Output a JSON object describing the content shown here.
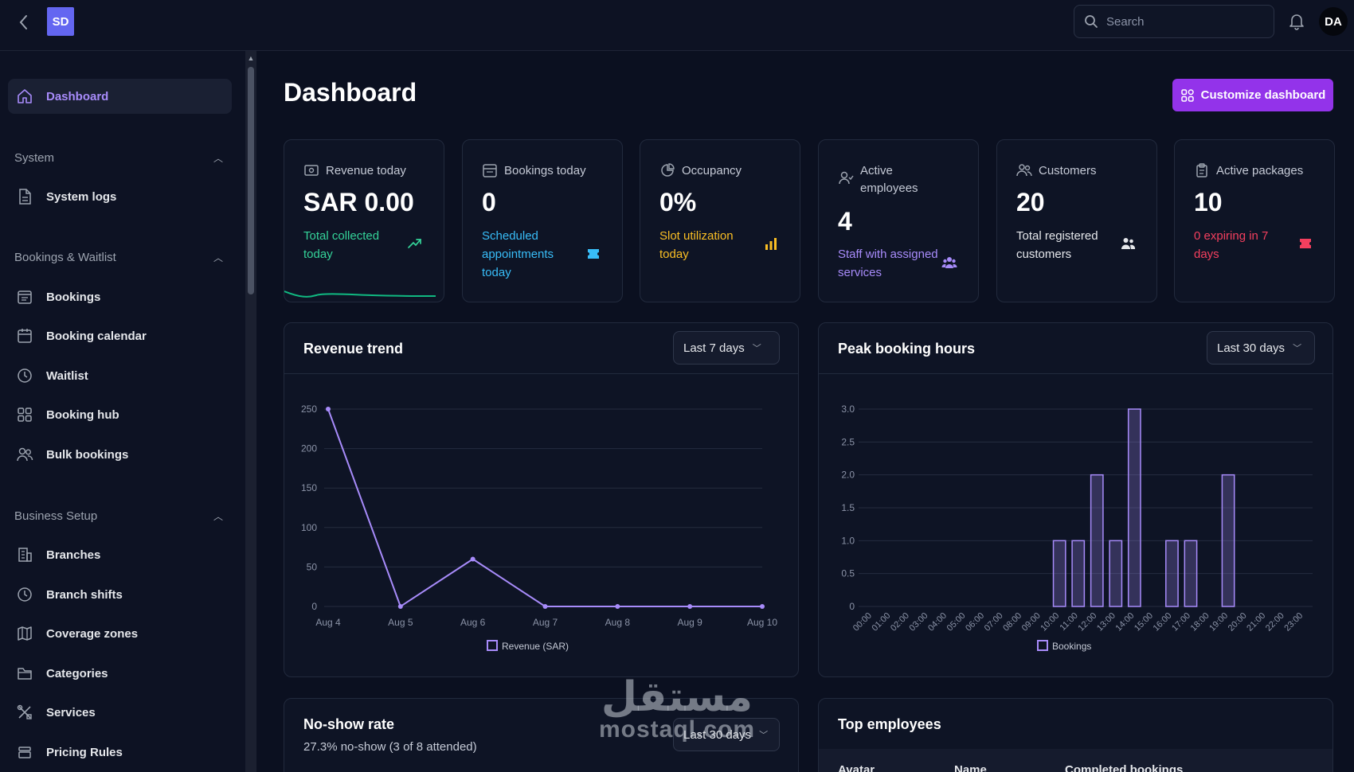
{
  "topbar": {
    "logo_text": "SD",
    "search_placeholder": "Search",
    "avatar_initials": "DA"
  },
  "sidebar": {
    "dashboard": "Dashboard",
    "sections": [
      {
        "label": "System",
        "items": [
          "System logs"
        ]
      },
      {
        "label": "Bookings & Waitlist",
        "items": [
          "Bookings",
          "Booking calendar",
          "Waitlist",
          "Booking hub",
          "Bulk bookings"
        ]
      },
      {
        "label": "Business Setup",
        "items": [
          "Branches",
          "Branch shifts",
          "Coverage zones",
          "Categories",
          "Services",
          "Pricing Rules"
        ]
      }
    ]
  },
  "page": {
    "title": "Dashboard",
    "customize_label": "Customize dashboard"
  },
  "stats": [
    {
      "label": "Revenue today",
      "value": "SAR 0.00",
      "sub": "Total collected today",
      "color": "#34d399",
      "icon": "trending-up-icon"
    },
    {
      "label": "Bookings today",
      "value": "0",
      "sub": "Scheduled appointments today",
      "color": "#38bdf8",
      "icon": "ticket-icon"
    },
    {
      "label": "Occupancy",
      "value": "0%",
      "sub": "Slot utilization today",
      "color": "#fbbf24",
      "icon": "bar-chart-icon"
    },
    {
      "label": "Active employees",
      "value": "4",
      "sub": "Staff with assigned services",
      "color": "#a78bfa",
      "icon": "users-group-icon"
    },
    {
      "label": "Customers",
      "value": "20",
      "sub": "Total registered customers",
      "color": "#e5e7eb",
      "icon": "users-icon"
    },
    {
      "label": "Active packages",
      "value": "10",
      "sub": "0 expiring in 7 days",
      "color": "#f43f5e",
      "icon": "ticket-red-icon"
    }
  ],
  "revenue_panel": {
    "title": "Revenue trend",
    "range": "Last 7 days"
  },
  "peak_panel": {
    "title": "Peak booking hours",
    "range": "Last 30 days"
  },
  "noshow_panel": {
    "title": "No-show rate",
    "subtitle": "27.3% no-show (3 of 8 attended)",
    "range": "Last 30 days"
  },
  "employees_panel": {
    "title": "Top employees",
    "columns": [
      "Avatar",
      "Name",
      "Completed bookings"
    ]
  },
  "watermark": {
    "arabic": "مستقل",
    "latin": "mostaql.com"
  },
  "chart_data": [
    {
      "type": "line",
      "x": [
        "Aug 4",
        "Aug 5",
        "Aug 6",
        "Aug 7",
        "Aug 8",
        "Aug 9",
        "Aug 10"
      ],
      "series": [
        {
          "name": "Revenue (SAR)",
          "values": [
            250,
            0,
            60,
            0,
            0,
            0,
            0
          ]
        }
      ],
      "yticks": [
        0,
        50,
        100,
        150,
        200,
        250
      ],
      "ylim": [
        0,
        250
      ],
      "legend": "bottom",
      "color": "#a78bfa"
    },
    {
      "type": "bar",
      "categories": [
        "00:00",
        "01:00",
        "02:00",
        "03:00",
        "04:00",
        "05:00",
        "06:00",
        "07:00",
        "08:00",
        "09:00",
        "10:00",
        "11:00",
        "12:00",
        "13:00",
        "14:00",
        "15:00",
        "16:00",
        "17:00",
        "18:00",
        "19:00",
        "20:00",
        "21:00",
        "22:00",
        "23:00"
      ],
      "series": [
        {
          "name": "Bookings",
          "values": [
            0,
            0,
            0,
            0,
            0,
            0,
            0,
            0,
            0,
            0,
            1,
            1,
            2,
            1,
            3,
            0,
            1,
            1,
            0,
            2,
            0,
            0,
            0,
            0
          ]
        }
      ],
      "yticks": [
        "0",
        "0.5",
        "1.0",
        "1.5",
        "2.0",
        "2.5",
        "3.0"
      ],
      "ylim": [
        0,
        3
      ],
      "legend": "bottom",
      "color": "#a78bfa"
    }
  ]
}
